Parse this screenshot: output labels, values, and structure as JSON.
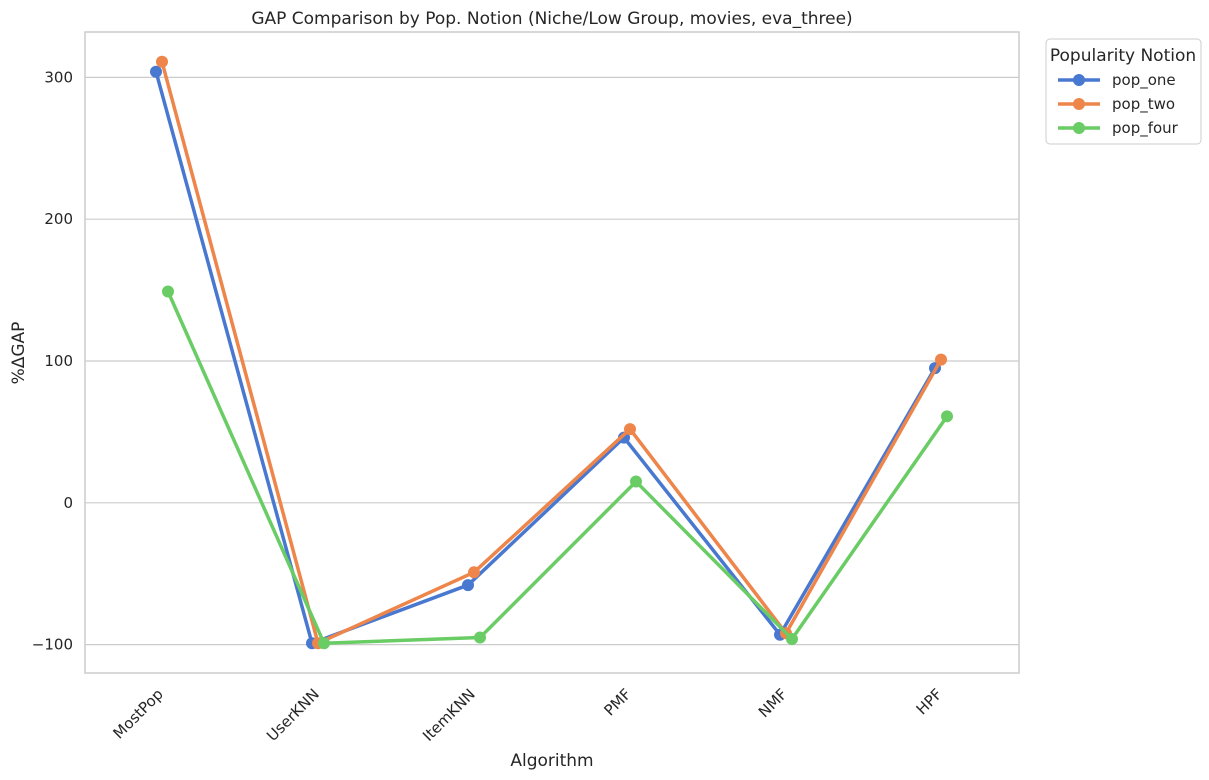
{
  "chart_data": {
    "type": "line",
    "title": "GAP Comparison by Pop. Notion (Niche/Low Group, movies, eva_three)",
    "xlabel": "Algorithm",
    "ylabel": "%ΔGAP",
    "categories": [
      "MostPop",
      "UserKNN",
      "ItemKNN",
      "PMF",
      "NMF",
      "HPF"
    ],
    "ylim": [
      -120,
      332
    ],
    "yticks": [
      -100,
      0,
      100,
      200,
      300
    ],
    "yticklabels": [
      "−100",
      "0",
      "100",
      "200",
      "300"
    ],
    "grid": "horizontal",
    "legend": {
      "title": "Popularity Notion",
      "placement": "outside-top-right"
    },
    "series": [
      {
        "name": "pop_one",
        "color": "#4878d0",
        "values": [
          304,
          -99,
          -58,
          46,
          -93,
          95
        ]
      },
      {
        "name": "pop_two",
        "color": "#ee854a",
        "values": [
          311,
          -99,
          -49,
          52,
          -92,
          101
        ]
      },
      {
        "name": "pop_four",
        "color": "#6acc64",
        "values": [
          149,
          -99,
          -95,
          15,
          -96,
          61
        ]
      }
    ]
  }
}
